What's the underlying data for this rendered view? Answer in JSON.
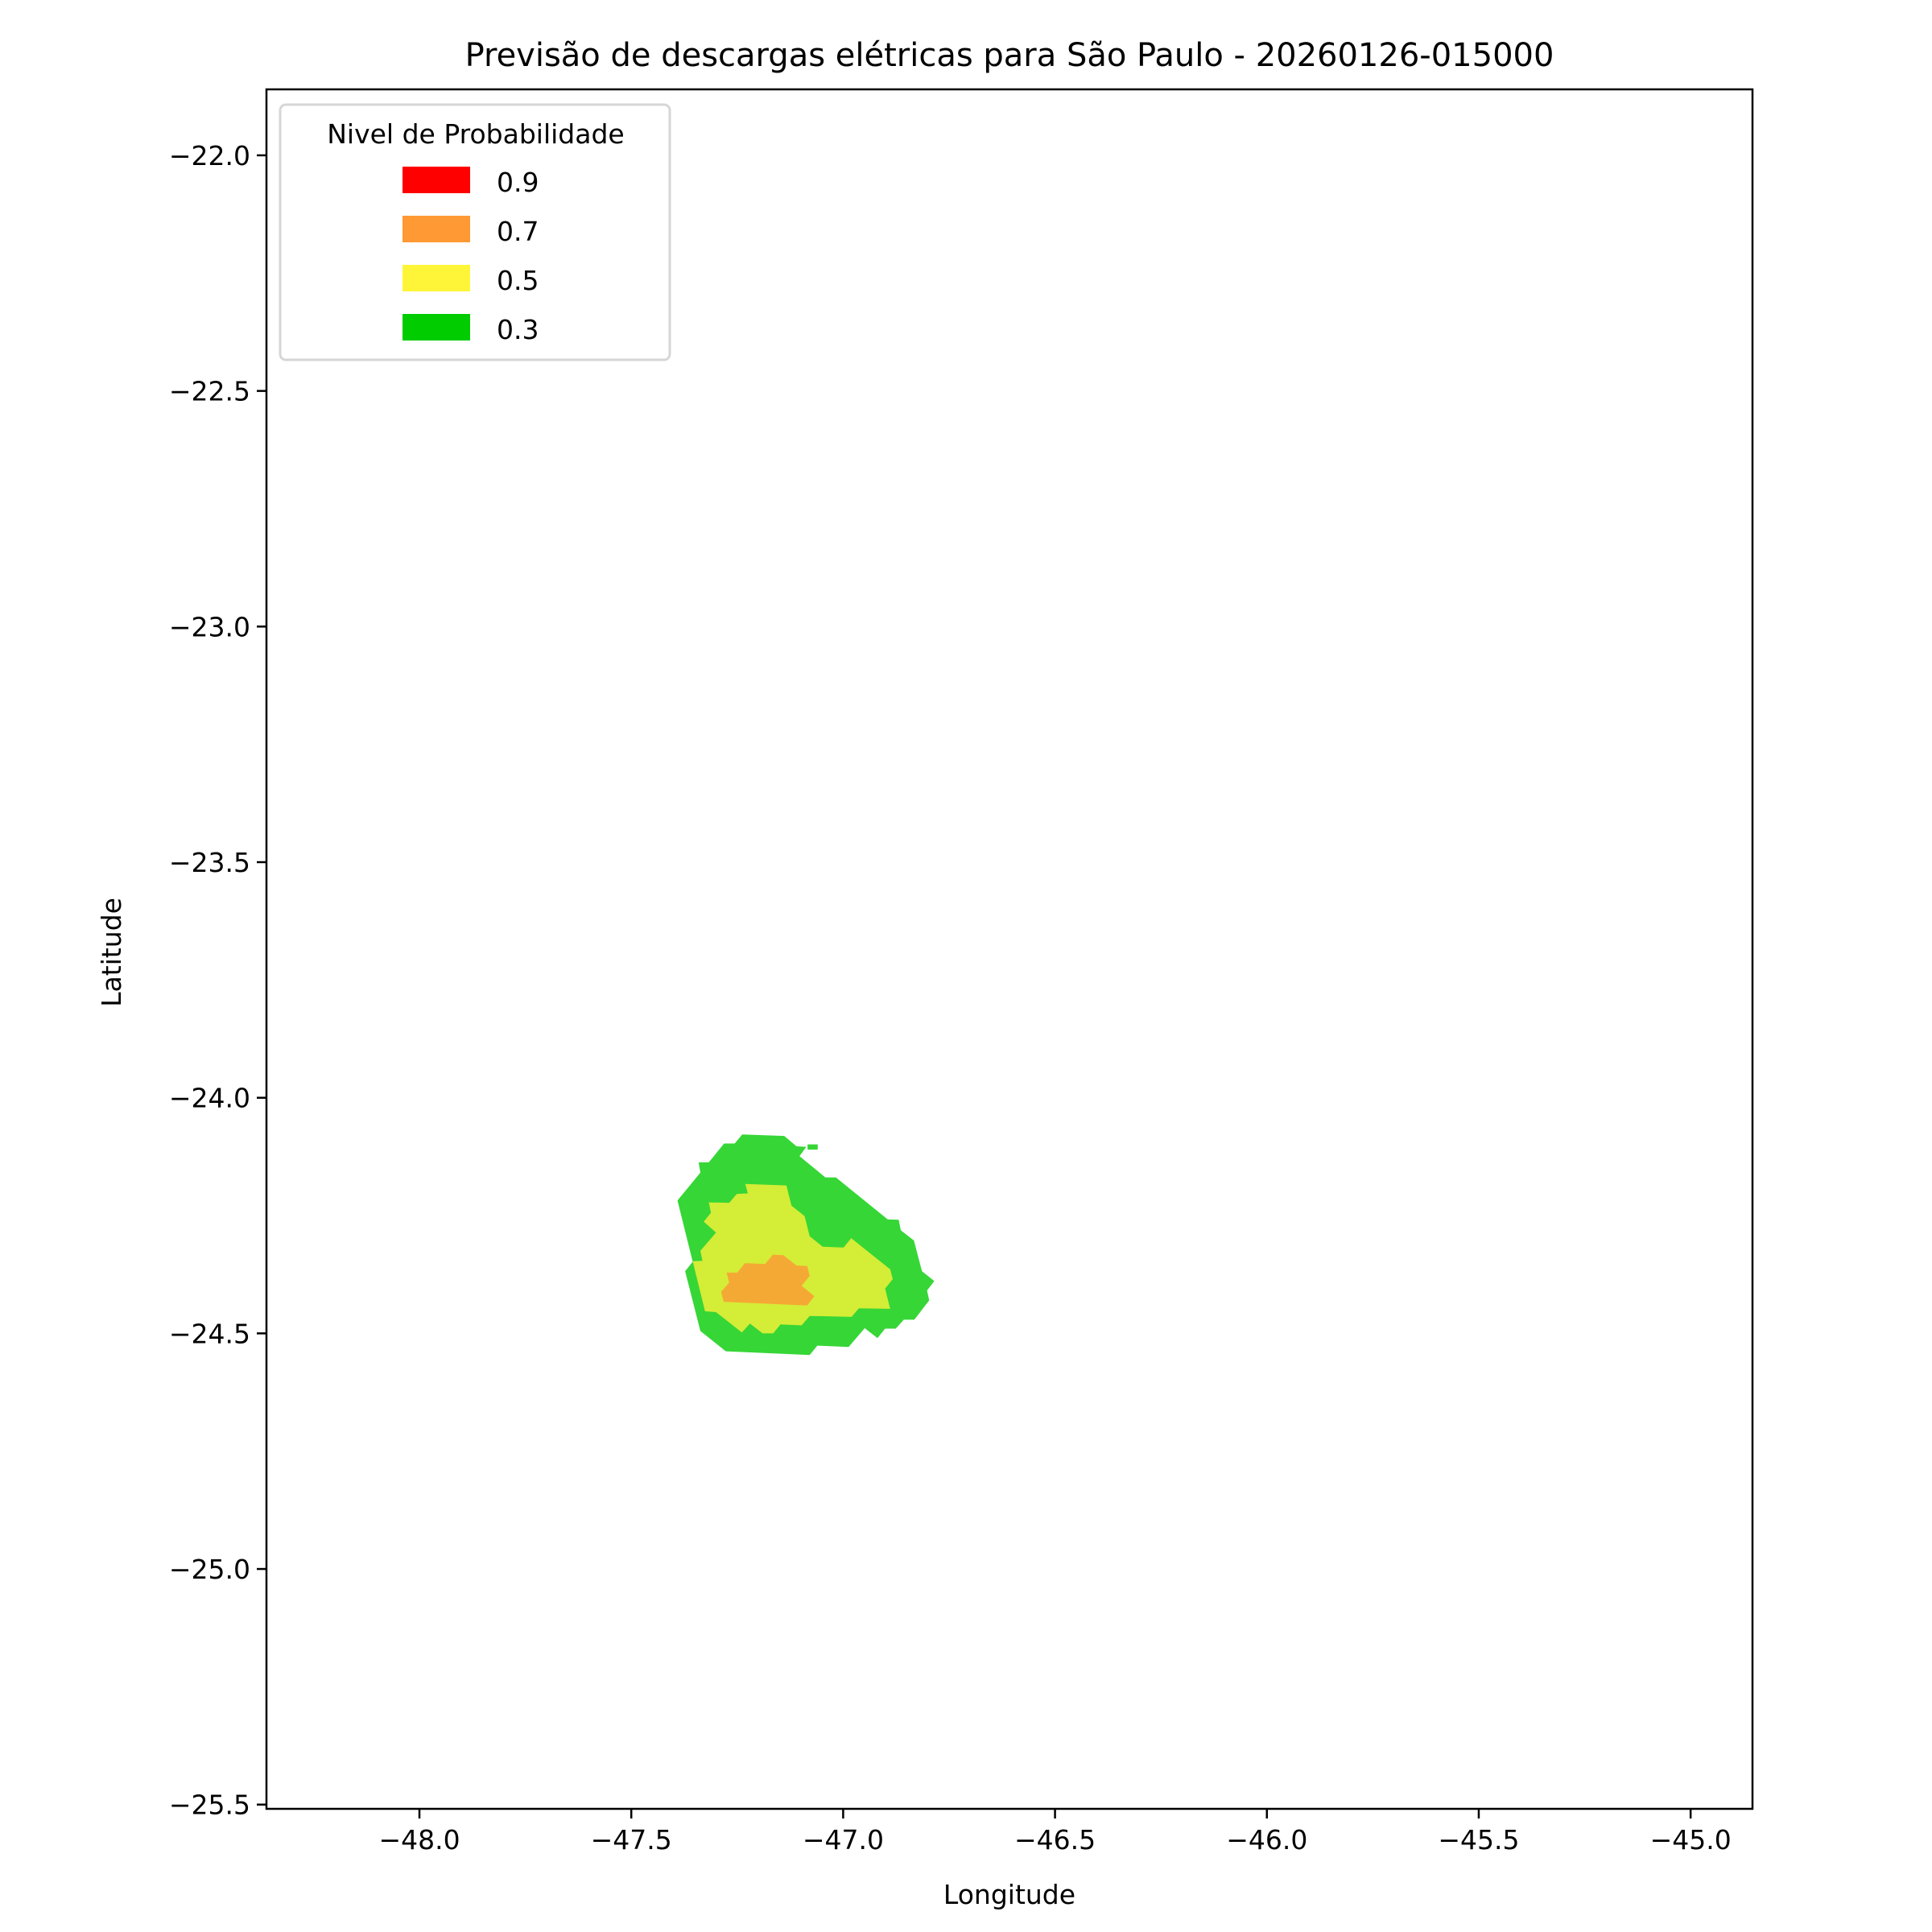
{
  "chart_data": {
    "type": "filled-contour",
    "title": "Previsão de descargas elétricas para São Paulo - 20260126-015000",
    "xlabel": "Longitude",
    "ylabel": "Latitude",
    "xlim": [
      -48.361,
      -44.854
    ],
    "ylim": [
      -25.509,
      -21.86
    ],
    "xticks": [
      -48.0,
      -47.5,
      -47.0,
      -46.5,
      -46.0,
      -45.5,
      -45.0
    ],
    "xtick_labels": [
      "−48.0",
      "−47.5",
      "−47.0",
      "−46.5",
      "−46.0",
      "−45.5",
      "−45.0"
    ],
    "yticks": [
      -22.0,
      -22.5,
      -23.0,
      -23.5,
      -24.0,
      -24.5,
      -25.0,
      -25.5
    ],
    "ytick_labels": [
      "−22.0",
      "−22.5",
      "−23.0",
      "−23.5",
      "−24.0",
      "−24.5",
      "−25.0",
      "−25.5"
    ],
    "grid": false,
    "legend": {
      "title": "Nivel de Probabilidade",
      "placement": "upper-left",
      "entries": [
        {
          "label": "0.9",
          "color": "#ff0000"
        },
        {
          "label": "0.7",
          "color": "#ff9933"
        },
        {
          "label": "0.5",
          "color": "#fff538"
        },
        {
          "label": "0.3",
          "color": "#00cc00"
        }
      ]
    },
    "regions": [
      {
        "level": "0.3",
        "color": "#36d636",
        "polygons": [
          [
            [
              -47.238,
              -24.078
            ],
            [
              -47.139,
              -24.081
            ],
            [
              -47.11,
              -24.103
            ],
            [
              -47.087,
              -24.104
            ],
            [
              -47.103,
              -24.124
            ],
            [
              -47.042,
              -24.169
            ],
            [
              -47.017,
              -24.169
            ],
            [
              -46.895,
              -24.258
            ],
            [
              -46.869,
              -24.259
            ],
            [
              -46.864,
              -24.281
            ],
            [
              -46.833,
              -24.303
            ],
            [
              -46.814,
              -24.368
            ],
            [
              -46.785,
              -24.389
            ],
            [
              -46.802,
              -24.409
            ],
            [
              -46.797,
              -24.43
            ],
            [
              -46.832,
              -24.471
            ],
            [
              -46.857,
              -24.471
            ],
            [
              -46.876,
              -24.49
            ],
            [
              -46.901,
              -24.49
            ],
            [
              -46.919,
              -24.51
            ],
            [
              -46.949,
              -24.489
            ],
            [
              -46.987,
              -24.529
            ],
            [
              -47.061,
              -24.526
            ],
            [
              -47.079,
              -24.546
            ],
            [
              -47.277,
              -24.538
            ],
            [
              -47.337,
              -24.495
            ],
            [
              -47.373,
              -24.368
            ],
            [
              -47.355,
              -24.348
            ],
            [
              -47.391,
              -24.218
            ],
            [
              -47.337,
              -24.159
            ],
            [
              -47.341,
              -24.137
            ],
            [
              -47.317,
              -24.137
            ],
            [
              -47.281,
              -24.097
            ],
            [
              -47.256,
              -24.097
            ]
          ],
          [
            [
              -47.084,
              -24.099
            ],
            [
              -47.06,
              -24.099
            ],
            [
              -47.06,
              -24.11
            ],
            [
              -47.084,
              -24.11
            ]
          ]
        ]
      },
      {
        "level": "0.5",
        "color": "#d4ed37",
        "polygons": [
          [
            [
              -47.231,
              -24.183
            ],
            [
              -47.134,
              -24.186
            ],
            [
              -47.122,
              -24.229
            ],
            [
              -47.091,
              -24.251
            ],
            [
              -47.079,
              -24.294
            ],
            [
              -47.048,
              -24.316
            ],
            [
              -46.999,
              -24.318
            ],
            [
              -46.981,
              -24.298
            ],
            [
              -46.889,
              -24.364
            ],
            [
              -46.883,
              -24.385
            ],
            [
              -46.901,
              -24.405
            ],
            [
              -46.889,
              -24.448
            ],
            [
              -46.963,
              -24.447
            ],
            [
              -46.98,
              -24.465
            ],
            [
              -47.079,
              -24.463
            ],
            [
              -47.098,
              -24.483
            ],
            [
              -47.148,
              -24.481
            ],
            [
              -47.165,
              -24.5
            ],
            [
              -47.19,
              -24.5
            ],
            [
              -47.22,
              -24.479
            ],
            [
              -47.239,
              -24.498
            ],
            [
              -47.3,
              -24.455
            ],
            [
              -47.326,
              -24.453
            ],
            [
              -47.355,
              -24.347
            ],
            [
              -47.332,
              -24.346
            ],
            [
              -47.337,
              -24.325
            ],
            [
              -47.3,
              -24.286
            ],
            [
              -47.329,
              -24.263
            ],
            [
              -47.312,
              -24.244
            ],
            [
              -47.317,
              -24.222
            ],
            [
              -47.269,
              -24.223
            ],
            [
              -47.251,
              -24.204
            ],
            [
              -47.225,
              -24.203
            ]
          ]
        ]
      },
      {
        "level": "0.7",
        "color": "#f5a935",
        "polygons": [
          [
            [
              -47.166,
              -24.333
            ],
            [
              -47.141,
              -24.334
            ],
            [
              -47.11,
              -24.356
            ],
            [
              -47.085,
              -24.357
            ],
            [
              -47.079,
              -24.378
            ],
            [
              -47.098,
              -24.399
            ],
            [
              -47.068,
              -24.421
            ],
            [
              -47.085,
              -24.441
            ],
            [
              -47.282,
              -24.433
            ],
            [
              -47.288,
              -24.412
            ],
            [
              -47.269,
              -24.392
            ],
            [
              -47.275,
              -24.371
            ],
            [
              -47.25,
              -24.371
            ],
            [
              -47.232,
              -24.351
            ],
            [
              -47.184,
              -24.353
            ]
          ]
        ]
      }
    ]
  }
}
